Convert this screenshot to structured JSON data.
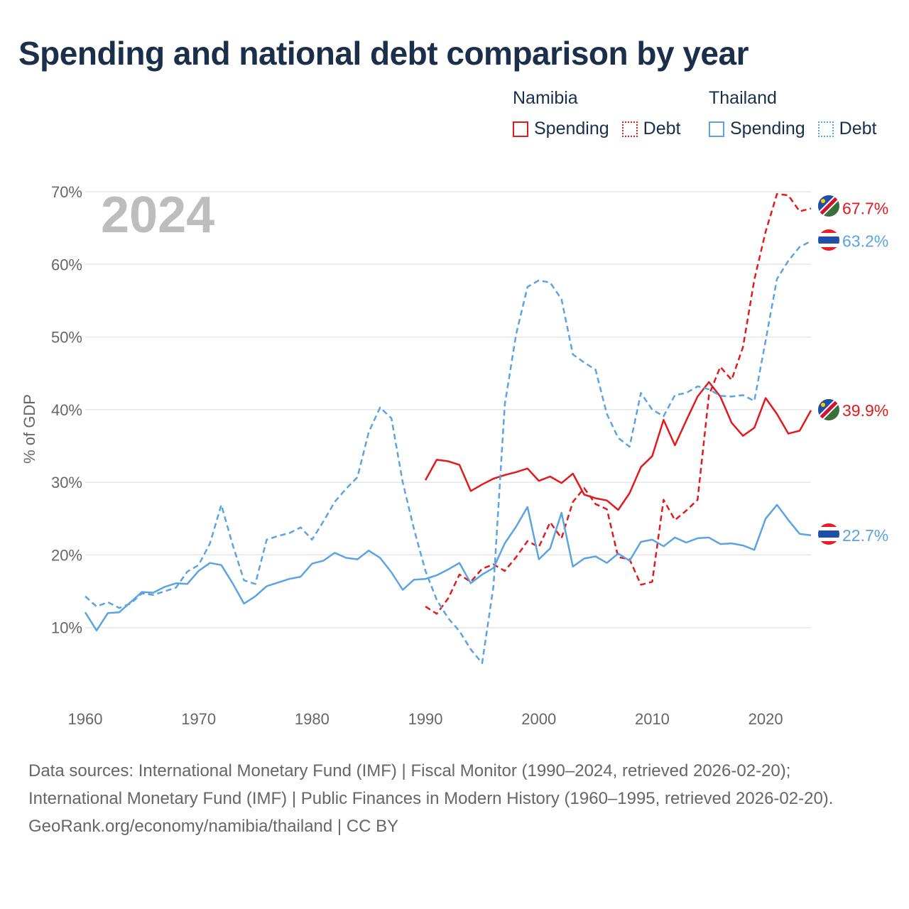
{
  "title": "Spending and national debt comparison by year",
  "legend": {
    "groups": [
      {
        "country": "Namibia",
        "items": [
          {
            "label": "Spending",
            "style": "solid"
          },
          {
            "label": "Debt",
            "style": "dotted"
          }
        ],
        "color": "#e31a1c"
      },
      {
        "country": "Thailand",
        "items": [
          {
            "label": "Spending",
            "style": "solid"
          },
          {
            "label": "Debt",
            "style": "dotted"
          }
        ],
        "color": "#5ba3e3"
      }
    ]
  },
  "year_label": "2024",
  "chart_data": {
    "type": "line",
    "title": "Spending and national debt comparison by year",
    "xlabel": "",
    "ylabel": "% of GDP",
    "xlim": [
      1960,
      2024
    ],
    "ylim": [
      0,
      70
    ],
    "x_ticks": [
      1960,
      1970,
      1980,
      1990,
      2000,
      2010,
      2020
    ],
    "x_tick_labels": [
      "1960",
      "1970",
      "1980",
      "1990",
      "2000",
      "2010",
      "2020"
    ],
    "y_ticks": [
      10,
      20,
      30,
      40,
      50,
      60,
      70
    ],
    "y_tick_labels": [
      "10%",
      "20%",
      "30%",
      "40%",
      "50%",
      "60%",
      "70%"
    ],
    "grid": true,
    "series": [
      {
        "name": "Namibia Spending",
        "country": "Namibia",
        "metric": "Spending",
        "color": "#e31a1c",
        "dash": "solid",
        "x": [
          1990,
          1991,
          1992,
          1993,
          1994,
          1995,
          1996,
          1997,
          1998,
          1999,
          2000,
          2001,
          2002,
          2003,
          2004,
          2005,
          2006,
          2007,
          2008,
          2009,
          2010,
          2011,
          2012,
          2013,
          2014,
          2015,
          2016,
          2017,
          2018,
          2019,
          2020,
          2021,
          2022,
          2023,
          2024
        ],
        "values": [
          30.3,
          33.1,
          32.9,
          32.4,
          28.8,
          29.7,
          30.5,
          31.0,
          31.4,
          31.9,
          30.2,
          30.8,
          29.9,
          31.2,
          28.3,
          27.8,
          27.5,
          26.2,
          28.5,
          32.1,
          33.6,
          38.6,
          35.1,
          38.5,
          41.8,
          43.8,
          41.8,
          38.2,
          36.4,
          37.5,
          41.6,
          39.4,
          36.7,
          37.1,
          39.9
        ],
        "end_label": "39.9%"
      },
      {
        "name": "Namibia Debt",
        "country": "Namibia",
        "metric": "Debt",
        "color": "#e31a1c",
        "dash": "dashed",
        "x": [
          1990,
          1991,
          1992,
          1993,
          1994,
          1995,
          1996,
          1997,
          1998,
          1999,
          2000,
          2001,
          2002,
          2003,
          2004,
          2005,
          2006,
          2007,
          2008,
          2009,
          2010,
          2011,
          2012,
          2013,
          2014,
          2015,
          2016,
          2017,
          2018,
          2019,
          2020,
          2021,
          2022,
          2023,
          2024
        ],
        "values": [
          12.9,
          11.9,
          14.0,
          17.3,
          16.3,
          18.1,
          18.7,
          17.8,
          19.7,
          21.9,
          21.1,
          24.5,
          22.3,
          27.3,
          29.2,
          27.0,
          26.3,
          19.7,
          19.4,
          15.9,
          16.3,
          27.6,
          24.8,
          26.1,
          27.6,
          42.0,
          45.9,
          44.1,
          48.6,
          57.9,
          64.5,
          69.7,
          69.5,
          67.3,
          67.7
        ],
        "end_label": "67.7%"
      },
      {
        "name": "Thailand Spending",
        "country": "Thailand",
        "metric": "Spending",
        "color": "#5ba3e3",
        "dash": "solid",
        "x": [
          1960,
          1961,
          1962,
          1963,
          1964,
          1965,
          1966,
          1967,
          1968,
          1969,
          1970,
          1971,
          1972,
          1973,
          1974,
          1975,
          1976,
          1977,
          1978,
          1979,
          1980,
          1981,
          1982,
          1983,
          1984,
          1985,
          1986,
          1987,
          1988,
          1989,
          1990,
          1991,
          1992,
          1993,
          1994,
          1995,
          1996,
          1997,
          1998,
          1999,
          2000,
          2001,
          2002,
          2003,
          2004,
          2005,
          2006,
          2007,
          2008,
          2009,
          2010,
          2011,
          2012,
          2013,
          2014,
          2015,
          2016,
          2017,
          2018,
          2019,
          2020,
          2021,
          2022,
          2023,
          2024
        ],
        "values": [
          12.1,
          9.6,
          12.0,
          12.1,
          13.5,
          14.9,
          14.8,
          15.6,
          16.1,
          16.0,
          17.8,
          18.9,
          18.6,
          16.1,
          13.3,
          14.3,
          15.7,
          16.2,
          16.7,
          17.0,
          18.8,
          19.2,
          20.3,
          19.6,
          19.4,
          20.6,
          19.6,
          17.6,
          15.2,
          16.6,
          16.7,
          17.2,
          18.0,
          18.9,
          16.1,
          17.3,
          18.2,
          21.6,
          23.9,
          26.6,
          19.4,
          20.9,
          25.8,
          18.4,
          19.5,
          19.8,
          18.9,
          20.2,
          19.2,
          21.8,
          22.1,
          21.2,
          22.4,
          21.7,
          22.3,
          22.4,
          21.5,
          21.6,
          21.3,
          20.7,
          25.0,
          26.9,
          24.8,
          22.9,
          22.7
        ],
        "end_label": "22.7%"
      },
      {
        "name": "Thailand Debt",
        "country": "Thailand",
        "metric": "Debt",
        "color": "#5ba3e3",
        "dash": "dashed",
        "x": [
          1960,
          1961,
          1962,
          1963,
          1964,
          1965,
          1966,
          1967,
          1968,
          1969,
          1970,
          1971,
          1972,
          1973,
          1974,
          1975,
          1976,
          1977,
          1978,
          1979,
          1980,
          1981,
          1982,
          1983,
          1984,
          1985,
          1986,
          1987,
          1988,
          1989,
          1990,
          1991,
          1992,
          1993,
          1994,
          1995,
          1996,
          1997,
          1998,
          1999,
          2000,
          2001,
          2002,
          2003,
          2004,
          2005,
          2006,
          2007,
          2008,
          2009,
          2010,
          2011,
          2012,
          2013,
          2014,
          2015,
          2016,
          2017,
          2018,
          2019,
          2020,
          2021,
          2022,
          2023,
          2024
        ],
        "values": [
          14.3,
          12.9,
          13.5,
          12.7,
          13.3,
          14.7,
          14.5,
          15.0,
          15.5,
          17.7,
          18.6,
          21.6,
          26.9,
          21.4,
          16.5,
          16.0,
          22.1,
          22.6,
          23.0,
          23.8,
          22.1,
          24.6,
          27.3,
          29.1,
          30.7,
          36.9,
          40.3,
          38.8,
          30.0,
          23.5,
          17.8,
          13.8,
          11.3,
          9.5,
          7.0,
          5.1,
          15.7,
          40.7,
          50.4,
          56.9,
          57.8,
          57.5,
          55.2,
          47.6,
          46.5,
          45.5,
          39.4,
          36.1,
          34.9,
          42.3,
          40.0,
          39.1,
          42.0,
          42.3,
          43.2,
          42.8,
          41.9,
          41.8,
          42.0,
          41.2,
          49.5,
          58.0,
          60.5,
          62.4,
          63.2
        ],
        "end_label": "63.2%"
      }
    ]
  },
  "footer": {
    "sources": "Data sources: International Monetary Fund (IMF) | Fiscal Monitor (1990–2024, retrieved 2026-02-20); International Monetary Fund (IMF) | Public Finances in Modern History (1960–1995, retrieved 2026-02-20).",
    "attribution": "GeoRank.org/economy/namibia/thailand | CC BY"
  },
  "colors": {
    "namibia": "#e31a1c",
    "thailand": "#5ba3e3",
    "title": "#1b2f4b",
    "grid": "#e6e6e6",
    "axis_text": "#666666",
    "year_label": "#bdbdbd"
  }
}
